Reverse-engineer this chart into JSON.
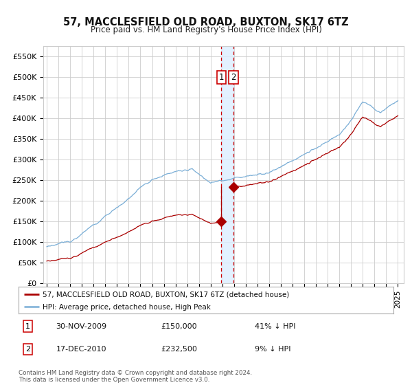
{
  "title": "57, MACCLESFIELD OLD ROAD, BUXTON, SK17 6TZ",
  "subtitle": "Price paid vs. HM Land Registry's House Price Index (HPI)",
  "ylabel_ticks": [
    "£0",
    "£50K",
    "£100K",
    "£150K",
    "£200K",
    "£250K",
    "£300K",
    "£350K",
    "£400K",
    "£450K",
    "£500K",
    "£550K"
  ],
  "ylim": [
    0,
    575000
  ],
  "yticks": [
    0,
    50000,
    100000,
    150000,
    200000,
    250000,
    300000,
    350000,
    400000,
    450000,
    500000,
    550000
  ],
  "sale1_date": 2009.917,
  "sale1_price": 150000,
  "sale2_date": 2010.958,
  "sale2_price": 232500,
  "legend_line1": "57, MACCLESFIELD OLD ROAD, BUXTON, SK17 6TZ (detached house)",
  "legend_line2": "HPI: Average price, detached house, High Peak",
  "table_rows": [
    {
      "num": "1",
      "date": "30-NOV-2009",
      "price": "£150,000",
      "hpi": "41% ↓ HPI"
    },
    {
      "num": "2",
      "date": "17-DEC-2010",
      "price": "£232,500",
      "hpi": "9% ↓ HPI"
    }
  ],
  "footnote": "Contains HM Land Registry data © Crown copyright and database right 2024.\nThis data is licensed under the Open Government Licence v3.0.",
  "hpi_color": "#7aaed6",
  "sale_color": "#aa0000",
  "vline_color": "#cc0000",
  "vband_color": "#ddeeff",
  "grid_color": "#cccccc",
  "bg_color": "#ffffff",
  "xstart": 1995,
  "xend": 2025
}
